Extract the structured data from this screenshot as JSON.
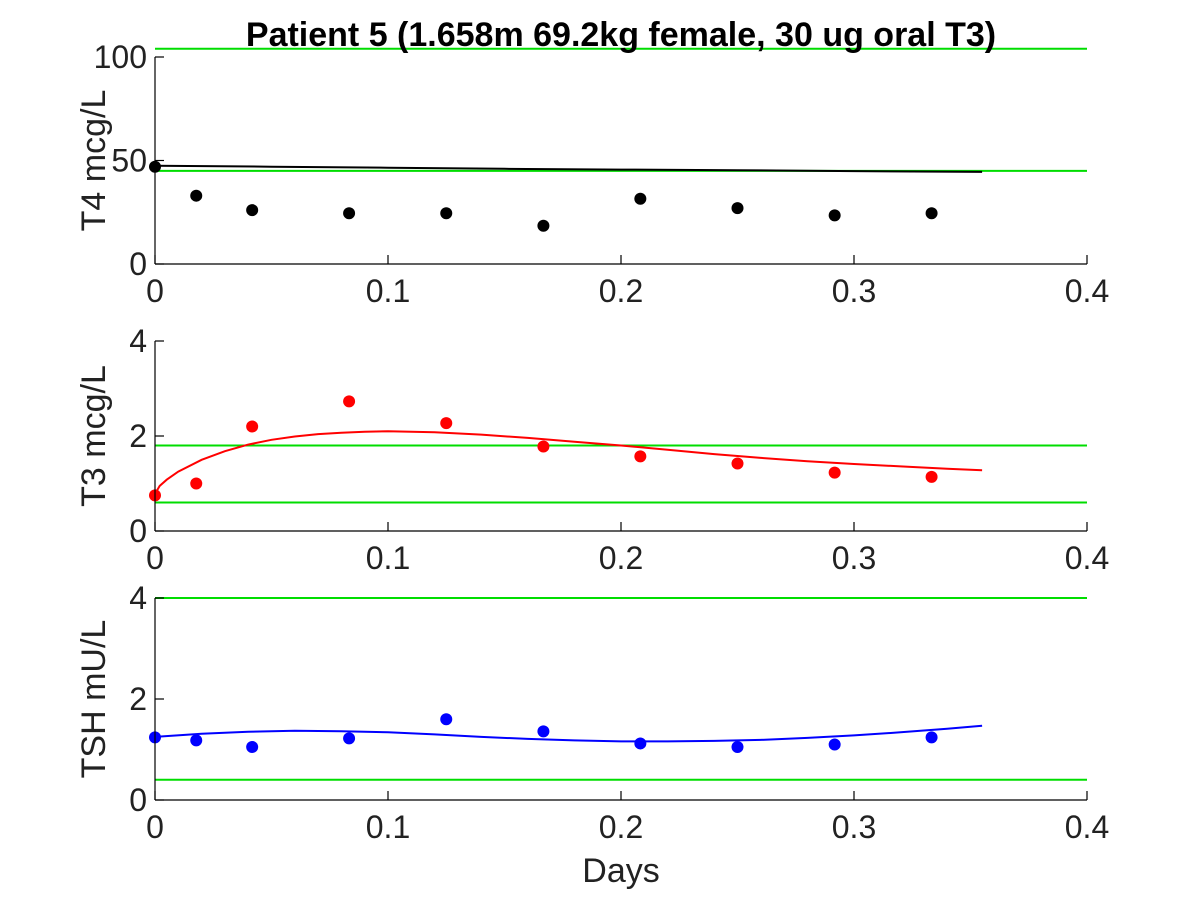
{
  "chart_data": [
    {
      "type": "scatter",
      "title": "Patient 5 (1.658m 69.2kg female, 30 ug oral T3)",
      "xlabel": "",
      "ylabel": "T4 mcg/L",
      "xlim": [
        0,
        0.4
      ],
      "ylim": [
        0,
        100
      ],
      "xticks": [
        "0",
        "0.1",
        "0.2",
        "0.3",
        "0.4"
      ],
      "yticks": [
        "0",
        "50",
        "100"
      ],
      "x": [
        0,
        0.0177,
        0.0417,
        0.0833,
        0.125,
        0.1667,
        0.2083,
        0.25,
        0.2917,
        0.3333
      ],
      "series": [
        {
          "kind": "points",
          "color": "#000000",
          "values": [
            47,
            33,
            26,
            24.5,
            24.5,
            18.5,
            31.5,
            27,
            23.5,
            24.5
          ]
        },
        {
          "kind": "line",
          "color": "#000000",
          "x": [
            0,
            0.05,
            0.1,
            0.15,
            0.2,
            0.25,
            0.3,
            0.355
          ],
          "values": [
            47.5,
            47.0,
            46.5,
            46.0,
            45.6,
            45.3,
            44.9,
            44.5
          ]
        }
      ],
      "reference_lines": {
        "color": "#00dd00",
        "y": [
          104,
          45
        ]
      }
    },
    {
      "type": "scatter",
      "title": "",
      "xlabel": "",
      "ylabel": "T3 mcg/L",
      "xlim": [
        0,
        0.4
      ],
      "ylim": [
        0,
        4
      ],
      "xticks": [
        "0",
        "0.1",
        "0.2",
        "0.3",
        "0.4"
      ],
      "yticks": [
        "0",
        "2",
        "4"
      ],
      "x": [
        0,
        0.0177,
        0.0417,
        0.0833,
        0.125,
        0.1667,
        0.2083,
        0.25,
        0.2917,
        0.3333
      ],
      "series": [
        {
          "kind": "points",
          "color": "#ff0000",
          "values": [
            0.75,
            1.0,
            2.2,
            2.73,
            2.27,
            1.78,
            1.57,
            1.42,
            1.23,
            1.14
          ]
        },
        {
          "kind": "line",
          "color": "#ff0000",
          "x": [
            0,
            0.002,
            0.005,
            0.01,
            0.02,
            0.03,
            0.04,
            0.05,
            0.06,
            0.07,
            0.08,
            0.09,
            0.1,
            0.12,
            0.14,
            0.16,
            0.18,
            0.2,
            0.22,
            0.24,
            0.26,
            0.28,
            0.3,
            0.32,
            0.34,
            0.355
          ],
          "values": [
            0.78,
            0.95,
            1.08,
            1.25,
            1.5,
            1.68,
            1.82,
            1.92,
            1.99,
            2.04,
            2.07,
            2.09,
            2.1,
            2.08,
            2.03,
            1.96,
            1.88,
            1.8,
            1.71,
            1.62,
            1.54,
            1.47,
            1.41,
            1.36,
            1.31,
            1.28
          ]
        }
      ],
      "reference_lines": {
        "color": "#00dd00",
        "y": [
          1.8,
          0.6
        ]
      }
    },
    {
      "type": "scatter",
      "title": "",
      "xlabel": "Days",
      "ylabel": "TSH mU/L",
      "xlim": [
        0,
        0.4
      ],
      "ylim": [
        0,
        4
      ],
      "xticks": [
        "0",
        "0.1",
        "0.2",
        "0.3",
        "0.4"
      ],
      "yticks": [
        "0",
        "2",
        "4"
      ],
      "x": [
        0,
        0.0177,
        0.0417,
        0.0833,
        0.125,
        0.1667,
        0.2083,
        0.25,
        0.2917,
        0.3333
      ],
      "series": [
        {
          "kind": "points",
          "color": "#0000ff",
          "values": [
            1.24,
            1.18,
            1.05,
            1.22,
            1.6,
            1.36,
            1.12,
            1.05,
            1.1,
            1.24
          ]
        },
        {
          "kind": "line",
          "color": "#0000ff",
          "x": [
            0,
            0.02,
            0.04,
            0.06,
            0.08,
            0.1,
            0.12,
            0.14,
            0.16,
            0.18,
            0.2,
            0.22,
            0.24,
            0.26,
            0.28,
            0.3,
            0.32,
            0.34,
            0.355
          ],
          "values": [
            1.25,
            1.31,
            1.35,
            1.37,
            1.36,
            1.34,
            1.3,
            1.25,
            1.21,
            1.18,
            1.16,
            1.16,
            1.17,
            1.19,
            1.23,
            1.28,
            1.34,
            1.41,
            1.47
          ]
        }
      ],
      "reference_lines": {
        "color": "#00dd00",
        "y": [
          4.0,
          0.4
        ]
      }
    }
  ]
}
